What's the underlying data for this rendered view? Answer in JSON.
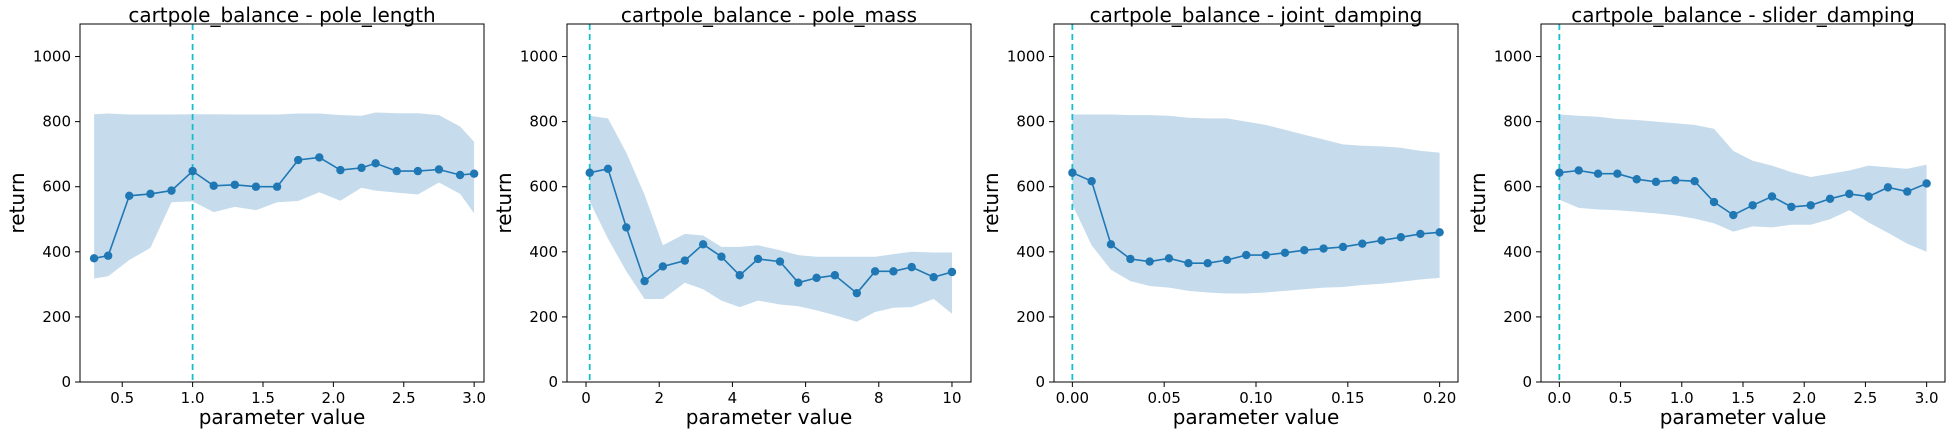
{
  "colors": {
    "line": "#1f77b4",
    "band": "#c6dcec",
    "vline": "#17becf",
    "axis": "#000000"
  },
  "chart_data": [
    {
      "type": "line",
      "title": "cartpole_balance - pole_length",
      "xlabel": "parameter value",
      "ylabel": "return",
      "xlim": [
        0.2,
        3.07
      ],
      "ylim": [
        0,
        1100
      ],
      "xticks": [
        0.5,
        1.0,
        1.5,
        2.0,
        2.5,
        3.0
      ],
      "xtick_labels": [
        "0.5",
        "1.0",
        "1.5",
        "2.0",
        "2.5",
        "3.0"
      ],
      "yticks": [
        0,
        200,
        400,
        600,
        800,
        1000
      ],
      "ytick_labels": [
        "0",
        "200",
        "400",
        "600",
        "800",
        "1000"
      ],
      "vline": 1.0,
      "x": [
        0.3,
        0.4,
        0.55,
        0.7,
        0.85,
        1.0,
        1.15,
        1.3,
        1.45,
        1.6,
        1.75,
        1.9,
        2.05,
        2.2,
        2.3,
        2.45,
        2.6,
        2.75,
        2.9,
        3.0
      ],
      "values": [
        380,
        388,
        572,
        578,
        588,
        648,
        603,
        606,
        600,
        600,
        682,
        690,
        651,
        658,
        672,
        648,
        648,
        653,
        636,
        640
      ],
      "upper": [
        823,
        825,
        822,
        822,
        822,
        823,
        823,
        822,
        822,
        822,
        825,
        825,
        820,
        818,
        828,
        826,
        826,
        820,
        785,
        738
      ],
      "lower": [
        318,
        325,
        375,
        412,
        552,
        555,
        522,
        538,
        528,
        552,
        556,
        583,
        557,
        597,
        588,
        582,
        576,
        613,
        578,
        518
      ]
    },
    {
      "type": "line",
      "title": "cartpole_balance - pole_mass",
      "xlabel": "parameter value",
      "ylabel": "return",
      "xlim": [
        -0.52,
        10.52
      ],
      "ylim": [
        0,
        1100
      ],
      "xticks": [
        0,
        2,
        4,
        6,
        8,
        10
      ],
      "xtick_labels": [
        "0",
        "2",
        "4",
        "6",
        "8",
        "10"
      ],
      "yticks": [
        0,
        200,
        400,
        600,
        800,
        1000
      ],
      "ytick_labels": [
        "0",
        "200",
        "400",
        "600",
        "800",
        "1000"
      ],
      "vline": 0.1,
      "x": [
        0.1,
        0.6,
        1.1,
        1.6,
        2.1,
        2.7,
        3.2,
        3.7,
        4.2,
        4.7,
        5.3,
        5.8,
        6.3,
        6.8,
        7.4,
        7.9,
        8.4,
        8.9,
        9.5,
        10.0
      ],
      "values": [
        643,
        655,
        475,
        310,
        355,
        373,
        423,
        385,
        328,
        378,
        370,
        305,
        320,
        328,
        273,
        340,
        340,
        353,
        322,
        338
      ],
      "upper": [
        818,
        810,
        705,
        575,
        420,
        455,
        450,
        415,
        415,
        420,
        405,
        390,
        385,
        385,
        385,
        385,
        393,
        400,
        398,
        398
      ],
      "lower": [
        555,
        440,
        340,
        255,
        255,
        305,
        285,
        250,
        230,
        250,
        238,
        233,
        220,
        205,
        185,
        215,
        228,
        230,
        255,
        210
      ]
    },
    {
      "type": "line",
      "title": "cartpole_balance - joint_damping",
      "xlabel": "parameter value",
      "ylabel": "return",
      "xlim": [
        -0.01,
        0.21
      ],
      "ylim": [
        0,
        1100
      ],
      "xticks": [
        0.0,
        0.05,
        0.1,
        0.15,
        0.2
      ],
      "xtick_labels": [
        "0.00",
        "0.05",
        "0.10",
        "0.15",
        "0.20"
      ],
      "yticks": [
        0,
        200,
        400,
        600,
        800,
        1000
      ],
      "ytick_labels": [
        "0",
        "200",
        "400",
        "600",
        "800",
        "1000"
      ],
      "vline": 0.0,
      "x": [
        0.0,
        0.0105,
        0.021,
        0.0316,
        0.0421,
        0.0526,
        0.0632,
        0.0737,
        0.0842,
        0.0947,
        0.1053,
        0.1158,
        0.1263,
        0.1368,
        0.1474,
        0.1579,
        0.1684,
        0.1789,
        0.1895,
        0.2
      ],
      "values": [
        643,
        617,
        423,
        378,
        370,
        380,
        365,
        365,
        375,
        390,
        390,
        397,
        405,
        410,
        415,
        425,
        435,
        445,
        455,
        460
      ],
      "upper": [
        822,
        822,
        822,
        820,
        820,
        818,
        812,
        810,
        810,
        800,
        790,
        775,
        760,
        745,
        730,
        726,
        724,
        720,
        710,
        705
      ],
      "lower": [
        545,
        420,
        345,
        310,
        295,
        290,
        280,
        275,
        272,
        272,
        275,
        280,
        285,
        290,
        292,
        298,
        302,
        308,
        315,
        320
      ]
    },
    {
      "type": "line",
      "title": "cartpole_balance - slider_damping",
      "xlabel": "parameter value",
      "ylabel": "return",
      "xlim": [
        -0.15,
        3.15
      ],
      "ylim": [
        0,
        1100
      ],
      "xticks": [
        0.0,
        0.5,
        1.0,
        1.5,
        2.0,
        2.5,
        3.0
      ],
      "xtick_labels": [
        "0.0",
        "0.5",
        "1.0",
        "1.5",
        "2.0",
        "2.5",
        "3.0"
      ],
      "yticks": [
        0,
        200,
        400,
        600,
        800,
        1000
      ],
      "ytick_labels": [
        "0",
        "200",
        "400",
        "600",
        "800",
        "1000"
      ],
      "vline": 0.0,
      "x": [
        0.0,
        0.158,
        0.316,
        0.474,
        0.632,
        0.789,
        0.947,
        1.105,
        1.263,
        1.421,
        1.579,
        1.737,
        1.895,
        2.053,
        2.211,
        2.368,
        2.526,
        2.684,
        2.842,
        3.0
      ],
      "values": [
        643,
        650,
        640,
        640,
        623,
        615,
        620,
        617,
        553,
        513,
        543,
        570,
        538,
        543,
        563,
        578,
        570,
        598,
        585,
        610
      ],
      "upper": [
        822,
        818,
        815,
        808,
        805,
        800,
        795,
        790,
        778,
        710,
        680,
        665,
        645,
        630,
        640,
        650,
        665,
        660,
        655,
        668
      ],
      "lower": [
        560,
        535,
        530,
        528,
        523,
        518,
        512,
        502,
        488,
        462,
        478,
        475,
        483,
        483,
        500,
        528,
        490,
        458,
        425,
        400
      ]
    }
  ]
}
